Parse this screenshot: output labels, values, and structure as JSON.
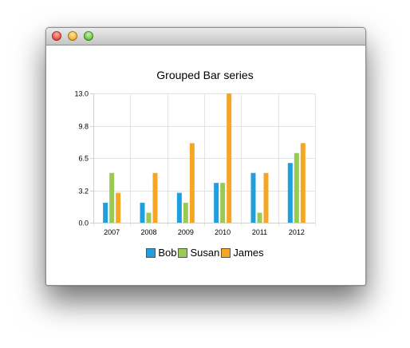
{
  "window": {
    "controls": [
      "close",
      "minimize",
      "maximize"
    ]
  },
  "chart_data": {
    "type": "bar",
    "title": "Grouped Bar series",
    "xlabel": "",
    "ylabel": "",
    "categories": [
      "2007",
      "2008",
      "2009",
      "2010",
      "2011",
      "2012"
    ],
    "series": [
      {
        "name": "Bob",
        "color": "#209fdf",
        "values": [
          2,
          2,
          3,
          4,
          5,
          6
        ]
      },
      {
        "name": "Susan",
        "color": "#99ca53",
        "values": [
          5,
          1,
          2,
          4,
          1,
          7
        ]
      },
      {
        "name": "James",
        "color": "#f6a625",
        "values": [
          3,
          5,
          8,
          13,
          5,
          8
        ]
      }
    ],
    "ylim": [
      0,
      13
    ],
    "yticks": [
      "0.0",
      "3.2",
      "6.5",
      "9.8",
      "13.0"
    ],
    "grid": true,
    "legend": "bottom"
  }
}
